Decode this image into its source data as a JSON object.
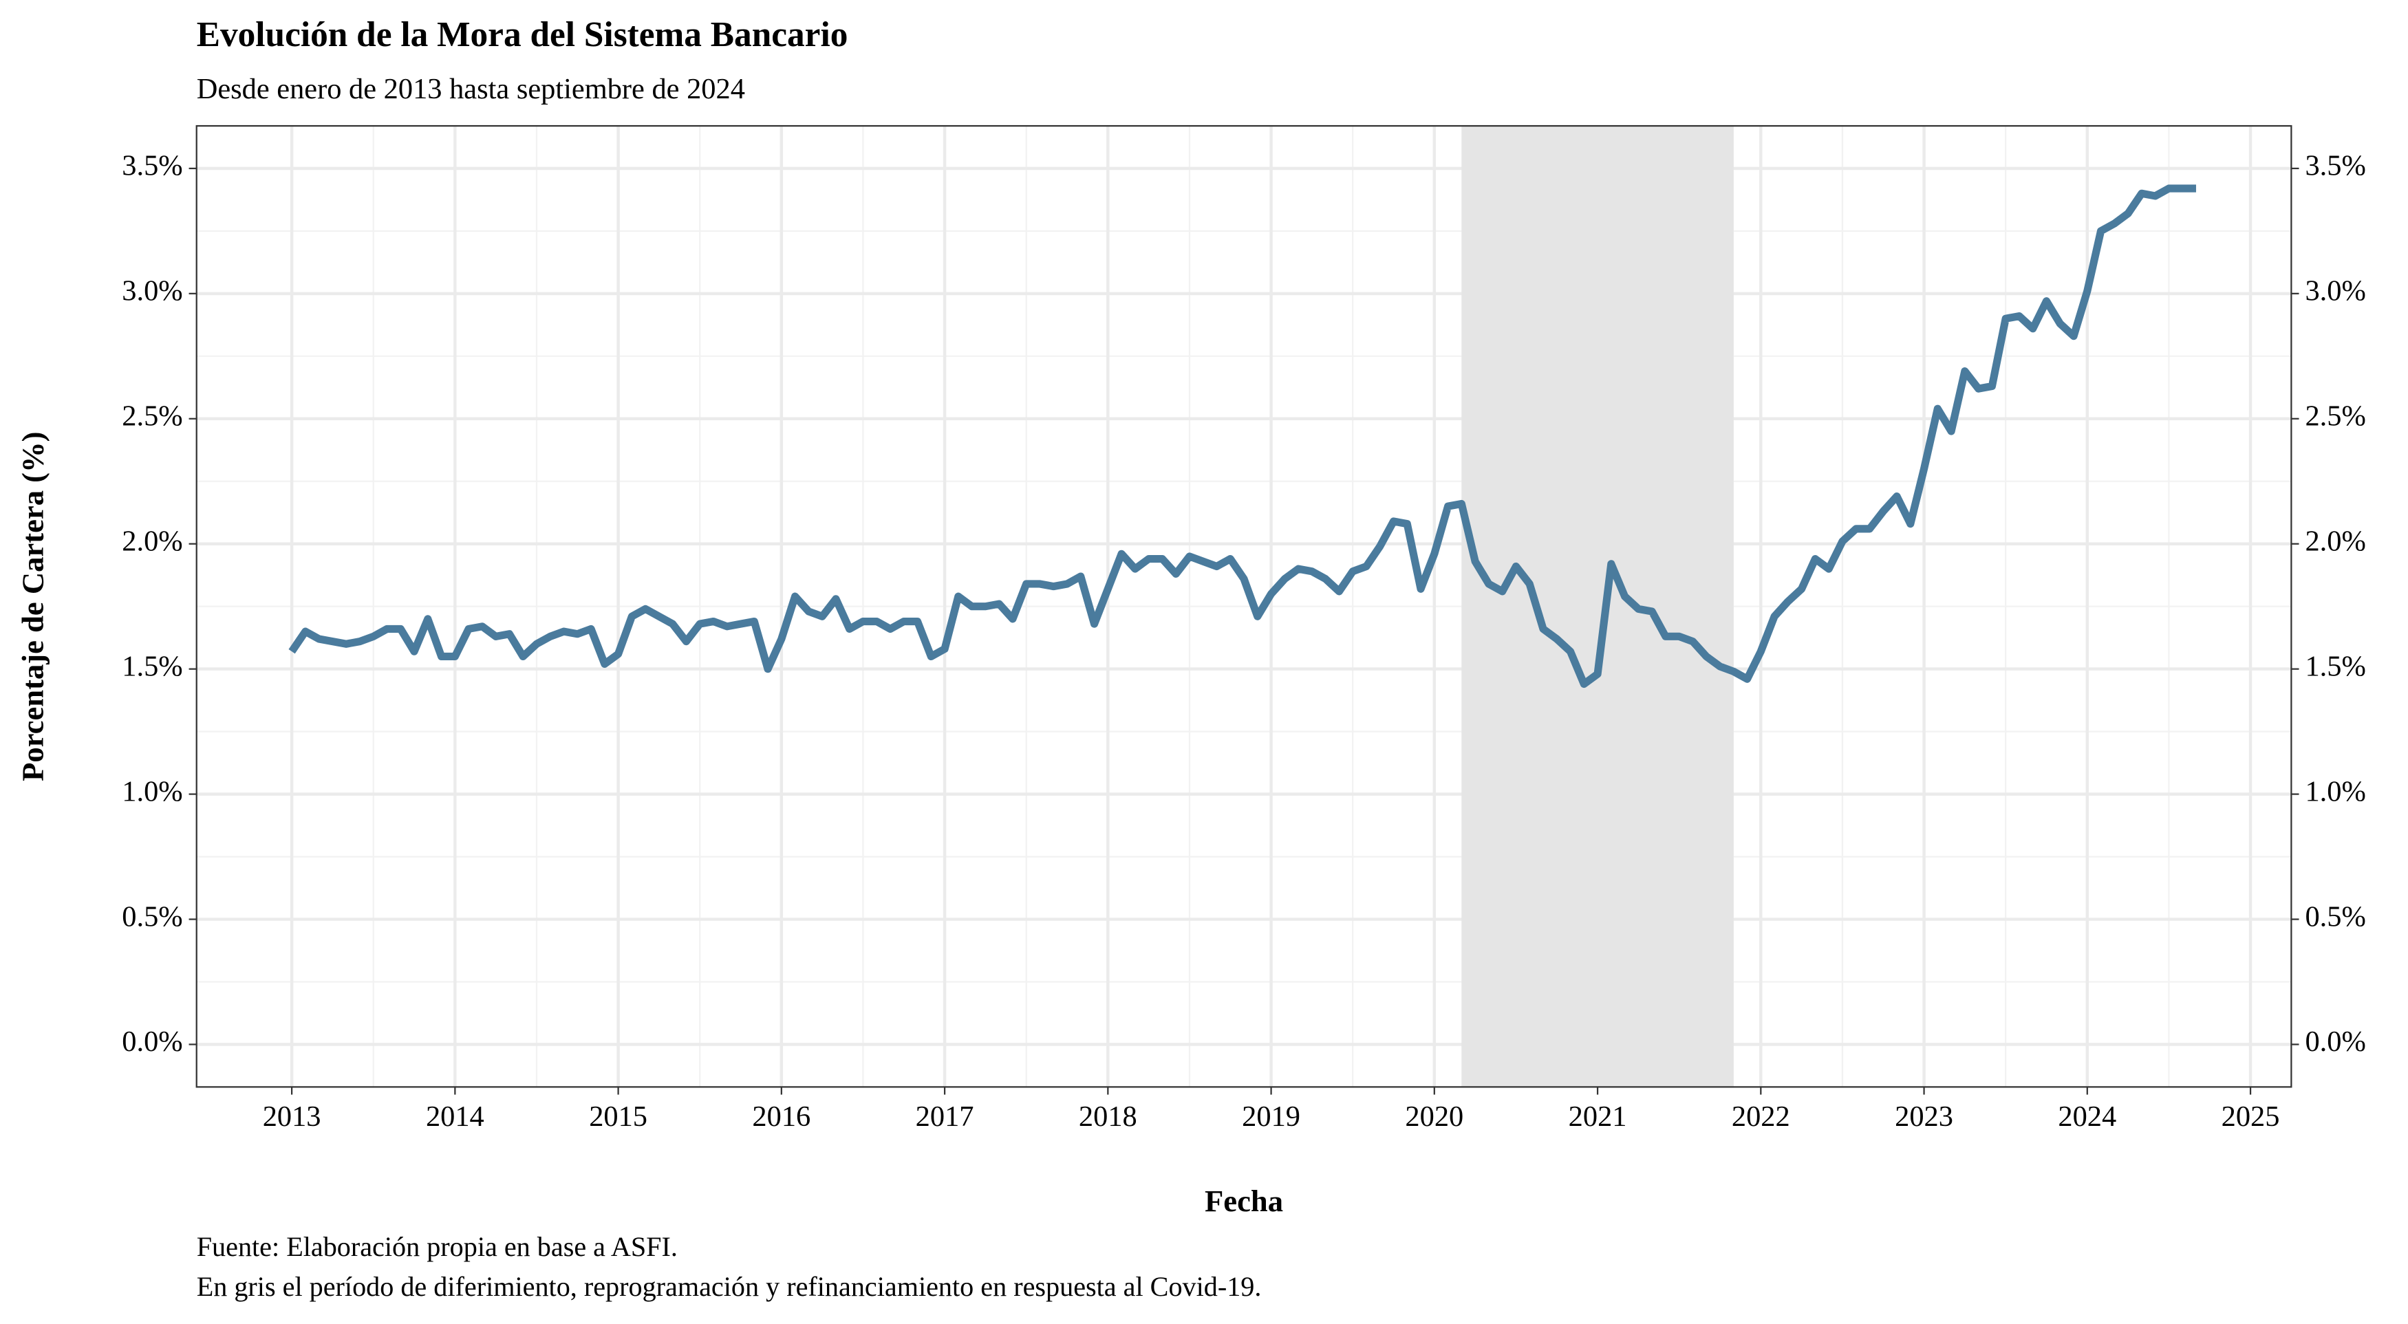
{
  "chart_data": {
    "type": "line",
    "title": "Evolución de la Mora del Sistema Bancario",
    "subtitle": "Desde enero de 2013 hasta septiembre de 2024",
    "x_label": "Fecha",
    "y_label": "Porcentaje de Cartera (%)",
    "caption": [
      "Fuente: Elaboración propia en base a ASFI.",
      "En gris el período de diferimiento, reprogramación y refinanciamiento en respuesta al Covid-19."
    ],
    "shaded_period": [
      "2020-03",
      "2021-11"
    ],
    "shade_color": "#e5e5e5",
    "grid": true,
    "secondary_axis": true,
    "x": [
      "2013-01",
      "2013-02",
      "2013-03",
      "2013-04",
      "2013-05",
      "2013-06",
      "2013-07",
      "2013-08",
      "2013-09",
      "2013-10",
      "2013-11",
      "2013-12",
      "2014-01",
      "2014-02",
      "2014-03",
      "2014-04",
      "2014-05",
      "2014-06",
      "2014-07",
      "2014-08",
      "2014-09",
      "2014-10",
      "2014-11",
      "2014-12",
      "2015-01",
      "2015-02",
      "2015-03",
      "2015-04",
      "2015-05",
      "2015-06",
      "2015-07",
      "2015-08",
      "2015-09",
      "2015-10",
      "2015-11",
      "2015-12",
      "2016-01",
      "2016-02",
      "2016-03",
      "2016-04",
      "2016-05",
      "2016-06",
      "2016-07",
      "2016-08",
      "2016-09",
      "2016-10",
      "2016-11",
      "2016-12",
      "2017-01",
      "2017-02",
      "2017-03",
      "2017-04",
      "2017-05",
      "2017-06",
      "2017-07",
      "2017-08",
      "2017-09",
      "2017-10",
      "2017-11",
      "2017-12",
      "2018-01",
      "2018-02",
      "2018-03",
      "2018-04",
      "2018-05",
      "2018-06",
      "2018-07",
      "2018-08",
      "2018-09",
      "2018-10",
      "2018-11",
      "2018-12",
      "2019-01",
      "2019-02",
      "2019-03",
      "2019-04",
      "2019-05",
      "2019-06",
      "2019-07",
      "2019-08",
      "2019-09",
      "2019-10",
      "2019-11",
      "2019-12",
      "2020-01",
      "2020-02",
      "2020-03",
      "2020-04",
      "2020-05",
      "2020-06",
      "2020-07",
      "2020-08",
      "2020-09",
      "2020-10",
      "2020-11",
      "2020-12",
      "2021-01",
      "2021-02",
      "2021-03",
      "2021-04",
      "2021-05",
      "2021-06",
      "2021-07",
      "2021-08",
      "2021-09",
      "2021-10",
      "2021-11",
      "2021-12",
      "2022-01",
      "2022-02",
      "2022-03",
      "2022-04",
      "2022-05",
      "2022-06",
      "2022-07",
      "2022-08",
      "2022-09",
      "2022-10",
      "2022-11",
      "2022-12",
      "2023-01",
      "2023-02",
      "2023-03",
      "2023-04",
      "2023-05",
      "2023-06",
      "2023-07",
      "2023-08",
      "2023-09",
      "2023-10",
      "2023-11",
      "2023-12",
      "2024-01",
      "2024-02",
      "2024-03",
      "2024-04",
      "2024-05",
      "2024-06",
      "2024-07",
      "2024-08",
      "2024-09"
    ],
    "series": [
      {
        "name": "Mora",
        "color": "#4a7b9d",
        "values": [
          1.57,
          1.65,
          1.62,
          1.61,
          1.6,
          1.61,
          1.63,
          1.66,
          1.66,
          1.57,
          1.7,
          1.55,
          1.55,
          1.66,
          1.67,
          1.63,
          1.64,
          1.55,
          1.6,
          1.63,
          1.65,
          1.64,
          1.66,
          1.52,
          1.56,
          1.71,
          1.74,
          1.71,
          1.68,
          1.61,
          1.68,
          1.69,
          1.67,
          1.68,
          1.69,
          1.5,
          1.62,
          1.79,
          1.73,
          1.71,
          1.78,
          1.66,
          1.69,
          1.69,
          1.66,
          1.69,
          1.69,
          1.55,
          1.58,
          1.79,
          1.75,
          1.75,
          1.76,
          1.7,
          1.84,
          1.84,
          1.83,
          1.84,
          1.87,
          1.68,
          1.82,
          1.96,
          1.9,
          1.94,
          1.94,
          1.88,
          1.95,
          1.93,
          1.91,
          1.94,
          1.86,
          1.71,
          1.8,
          1.86,
          1.9,
          1.89,
          1.86,
          1.81,
          1.89,
          1.91,
          1.99,
          2.09,
          2.08,
          1.82,
          1.96,
          2.15,
          2.16,
          1.93,
          1.84,
          1.81,
          1.91,
          1.84,
          1.66,
          1.62,
          1.57,
          1.44,
          1.48,
          1.92,
          1.79,
          1.74,
          1.73,
          1.63,
          1.63,
          1.61,
          1.55,
          1.51,
          1.49,
          1.46,
          1.57,
          1.71,
          1.77,
          1.82,
          1.94,
          1.9,
          2.01,
          2.06,
          2.06,
          2.13,
          2.19,
          2.08,
          2.3,
          2.54,
          2.45,
          2.69,
          2.62,
          2.63,
          2.9,
          2.91,
          2.86,
          2.97,
          2.88,
          2.83,
          3.01,
          3.25,
          3.28,
          3.32,
          3.4,
          3.39,
          3.42,
          3.42,
          3.42
        ]
      }
    ],
    "xlim": [
      "2012-06",
      "2025-04"
    ],
    "xticks": [
      "2013",
      "2014",
      "2015",
      "2016",
      "2017",
      "2018",
      "2019",
      "2020",
      "2021",
      "2022",
      "2023",
      "2024",
      "2025"
    ],
    "ylim": [
      -0.17,
      3.67
    ],
    "yticks": [
      {
        "value": 0,
        "label": "0.0%"
      },
      {
        "value": 0.5,
        "label": "0.5%"
      },
      {
        "value": 1,
        "label": "1.0%"
      },
      {
        "value": 1.5,
        "label": "1.5%"
      },
      {
        "value": 2,
        "label": "2.0%"
      },
      {
        "value": 2.5,
        "label": "2.5%"
      },
      {
        "value": 3,
        "label": "3.0%"
      },
      {
        "value": 3.5,
        "label": "3.5%"
      }
    ]
  }
}
